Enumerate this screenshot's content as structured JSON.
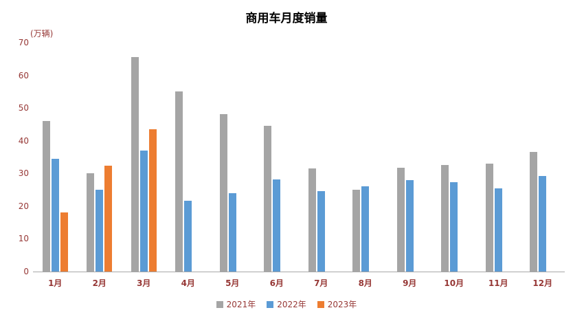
{
  "title": "商用车月度销量",
  "unit_label": "(万辆)",
  "chart_data": {
    "type": "bar",
    "categories": [
      "1月",
      "2月",
      "3月",
      "4月",
      "5月",
      "6月",
      "7月",
      "8月",
      "9月",
      "10月",
      "11月",
      "12月"
    ],
    "series": [
      {
        "name": "2021年",
        "color": "#a5a5a5",
        "values": [
          46,
          30,
          65.5,
          55,
          48.2,
          44.5,
          31.5,
          25,
          31.8,
          32.5,
          33,
          36.5
        ]
      },
      {
        "name": "2022年",
        "color": "#5b9bd5",
        "values": [
          34.5,
          25,
          37,
          21.7,
          24,
          28.2,
          24.5,
          26,
          28,
          27.3,
          25.5,
          29.3
        ]
      },
      {
        "name": "2023年",
        "color": "#ed7d31",
        "values": [
          18,
          32.4,
          43.5,
          null,
          null,
          null,
          null,
          null,
          null,
          null,
          null,
          null
        ]
      }
    ],
    "title": "商用车月度销量",
    "xlabel": "",
    "ylabel": "(万辆)",
    "ylim": [
      0,
      70
    ],
    "ytick_step": 10,
    "grid": false,
    "legend_position": "bottom",
    "axis_text_color": "#963735",
    "title_color": "#000000"
  }
}
